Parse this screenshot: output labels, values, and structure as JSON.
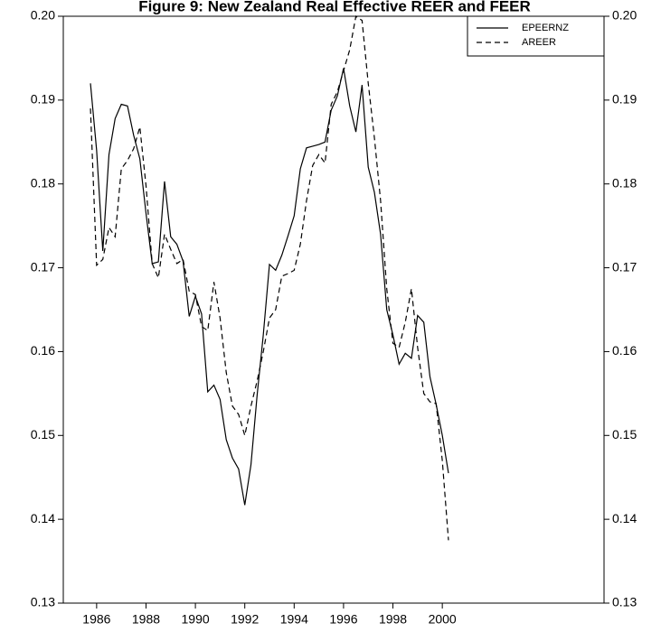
{
  "chart_data": {
    "type": "line",
    "title": "Figure 9: New Zealand Real Effective REER and FEER",
    "x": [
      1985.75,
      1986,
      1986.25,
      1986.5,
      1986.75,
      1987,
      1987.25,
      1987.5,
      1987.75,
      1988,
      1988.25,
      1988.5,
      1988.75,
      1989,
      1989.25,
      1989.5,
      1989.75,
      1990,
      1990.25,
      1990.5,
      1990.75,
      1991,
      1991.25,
      1991.5,
      1991.75,
      1992,
      1992.25,
      1992.5,
      1992.75,
      1993,
      1993.25,
      1993.5,
      1993.75,
      1994,
      1994.25,
      1994.5,
      1994.75,
      1995,
      1995.25,
      1995.5,
      1995.75,
      1996,
      1996.25,
      1996.5,
      1996.75,
      1997,
      1997.25,
      1997.5,
      1997.75,
      1998,
      1998.25,
      1998.5,
      1998.75,
      1999,
      1999.25,
      1999.5,
      1999.75,
      2000,
      2000.25
    ],
    "series": [
      {
        "name": "EPEERNZ",
        "color": "#000000",
        "linestyle": "solid",
        "values": [
          0.192,
          0.184,
          0.172,
          0.1835,
          0.1878,
          0.1895,
          0.1893,
          0.1858,
          0.183,
          0.1765,
          0.1705,
          0.1707,
          0.1803,
          0.1737,
          0.1728,
          0.1708,
          0.1642,
          0.1666,
          0.1645,
          0.1552,
          0.156,
          0.1543,
          0.1495,
          0.1473,
          0.146,
          0.1417,
          0.1465,
          0.1548,
          0.162,
          0.1704,
          0.1697,
          0.1715,
          0.1738,
          0.1762,
          0.1818,
          0.1843,
          0.1845,
          0.1847,
          0.185,
          0.1888,
          0.1905,
          0.1938,
          0.1893,
          0.1862,
          0.1918,
          0.182,
          0.179,
          0.174,
          0.165,
          0.162,
          0.1585,
          0.1598,
          0.1592,
          0.1643,
          0.1635,
          0.157,
          0.1537,
          0.15,
          0.1455
        ]
      },
      {
        "name": "AREER",
        "color": "#000000",
        "linestyle": "dashed",
        "values": [
          0.189,
          0.1703,
          0.171,
          0.1748,
          0.1737,
          0.1818,
          0.1828,
          0.1842,
          0.1868,
          0.1798,
          0.1705,
          0.1688,
          0.174,
          0.1722,
          0.1705,
          0.171,
          0.1672,
          0.1668,
          0.163,
          0.1625,
          0.1683,
          0.164,
          0.1575,
          0.1535,
          0.1525,
          0.15,
          0.1535,
          0.1565,
          0.16,
          0.164,
          0.165,
          0.169,
          0.1693,
          0.1697,
          0.1728,
          0.178,
          0.1822,
          0.1835,
          0.1825,
          0.1895,
          0.191,
          0.1935,
          0.196,
          0.2,
          0.1995,
          0.192,
          0.1855,
          0.178,
          0.1675,
          0.161,
          0.1605,
          0.1635,
          0.1675,
          0.1605,
          0.155,
          0.154,
          0.1538,
          0.147,
          0.1375
        ]
      }
    ],
    "xlim": [
      1984.65,
      2006.55
    ],
    "xticks": [
      1986,
      1988,
      1990,
      1992,
      1994,
      1996,
      1998,
      2000
    ],
    "ylim": [
      0.13,
      0.2
    ],
    "yticks": [
      {
        "value": 0.13,
        "label": "0.13"
      },
      {
        "value": 0.14,
        "label": "0.14"
      },
      {
        "value": 0.15,
        "label": "0.15"
      },
      {
        "value": 0.16,
        "label": "0.16"
      },
      {
        "value": 0.17,
        "label": "0.17"
      },
      {
        "value": 0.18,
        "label": "0.18"
      },
      {
        "value": 0.19,
        "label": "0.19"
      },
      {
        "value": 0.2,
        "label": "0.20"
      }
    ],
    "legend": "upper right"
  }
}
